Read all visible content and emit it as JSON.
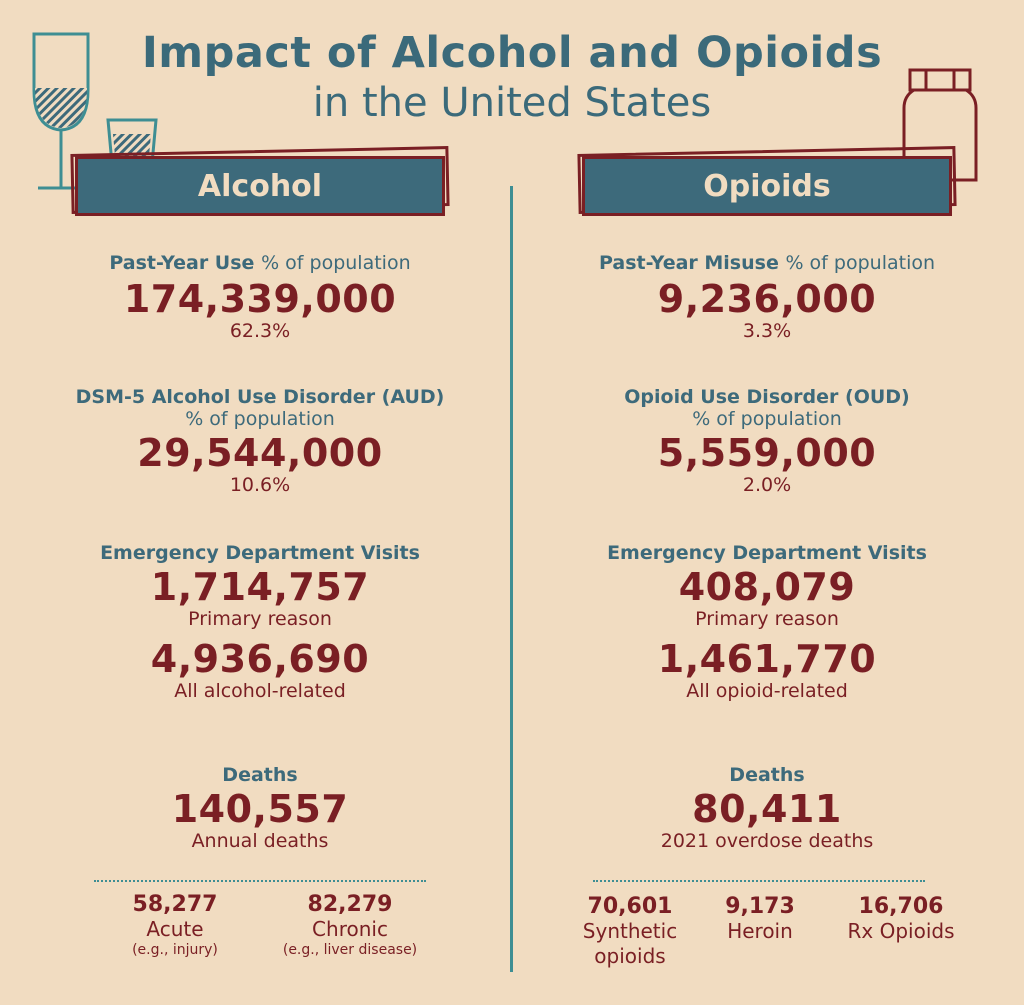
{
  "title": {
    "main": "Impact of Alcohol and Opioids",
    "sub": "in the United States"
  },
  "alcohol": {
    "banner": "Alcohol",
    "use": {
      "head_bold": "Past-Year Use",
      "head_light": "% of population",
      "value": "174,339,000",
      "pct": "62.3%"
    },
    "disorder": {
      "head": "DSM-5 Alcohol Use Disorder (AUD)",
      "sub": "% of population",
      "value": "29,544,000",
      "pct": "10.6%"
    },
    "ed": {
      "head": "Emergency Department Visits",
      "primary_value": "1,714,757",
      "primary_label": "Primary reason",
      "related_value": "4,936,690",
      "related_label": "All alcohol-related"
    },
    "deaths": {
      "head": "Deaths",
      "value": "140,557",
      "label": "Annual deaths",
      "breakdown": [
        {
          "value": "58,277",
          "label": "Acute",
          "note": "(e.g., injury)"
        },
        {
          "value": "82,279",
          "label": "Chronic",
          "note": "(e.g., liver disease)"
        }
      ]
    }
  },
  "opioids": {
    "banner": "Opioids",
    "use": {
      "head_bold": "Past-Year Misuse",
      "head_light": "% of population",
      "value": "9,236,000",
      "pct": "3.3%"
    },
    "disorder": {
      "head": "Opioid Use Disorder (OUD)",
      "sub": "% of population",
      "value": "5,559,000",
      "pct": "2.0%"
    },
    "ed": {
      "head": "Emergency Department Visits",
      "primary_value": "408,079",
      "primary_label": "Primary reason",
      "related_value": "1,461,770",
      "related_label": "All opioid-related"
    },
    "deaths": {
      "head": "Deaths",
      "value": "80,411",
      "label": "2021 overdose deaths",
      "breakdown": [
        {
          "value": "70,601",
          "label_line1": "Synthetic",
          "label_line2": "opioids"
        },
        {
          "value": "9,173",
          "label_line1": "Heroin"
        },
        {
          "value": "16,706",
          "label_line1": "Rx Opioids"
        }
      ]
    }
  },
  "icons": {
    "wine_glass": "wine-glass-icon",
    "shot_glass": "shot-glass-icon",
    "pill_bottle": "pill-bottle-icon"
  },
  "colors": {
    "background": "#f1dcc1",
    "teal": "#3d6a7b",
    "maroon": "#7a1f24",
    "divider": "#3e8e93"
  }
}
